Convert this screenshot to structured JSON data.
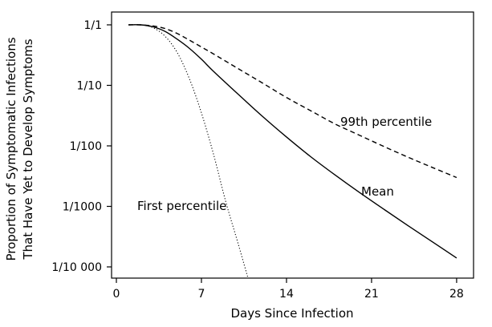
{
  "chart_data": {
    "type": "line",
    "xlabel": "Days Since Infection",
    "ylabel_lines": [
      "Proportion of Symptomatic Infections",
      "That Have Yet to Develop Symptoms"
    ],
    "y_scale": "log",
    "xlim": [
      -0.2,
      28.4
    ],
    "ylim": [
      6e-05,
      1.1
    ],
    "grid": false,
    "x_ticks": [
      {
        "value": 0,
        "label": "0"
      },
      {
        "value": 7,
        "label": "7"
      },
      {
        "value": 14,
        "label": "14"
      },
      {
        "value": 21,
        "label": "21"
      },
      {
        "value": 28,
        "label": "28"
      }
    ],
    "y_ticks": [
      {
        "value": 1,
        "label": "1/1"
      },
      {
        "value": 0.1,
        "label": "1/10"
      },
      {
        "value": 0.01,
        "label": "1/100"
      },
      {
        "value": 0.001,
        "label": "1/1000"
      },
      {
        "value": 0.0001,
        "label": "1/10 000"
      }
    ],
    "series": [
      {
        "name": "99th percentile",
        "style": "dashed",
        "color": "#000000",
        "points": [
          [
            1,
            1
          ],
          [
            2,
            1
          ],
          [
            3,
            0.96
          ],
          [
            4,
            0.87
          ],
          [
            5,
            0.72
          ],
          [
            6,
            0.56
          ],
          [
            7,
            0.43
          ],
          [
            8,
            0.33
          ],
          [
            10,
            0.19
          ],
          [
            12,
            0.11
          ],
          [
            14,
            0.063
          ],
          [
            16,
            0.038
          ],
          [
            18,
            0.023
          ],
          [
            20,
            0.015
          ],
          [
            22,
            0.0098
          ],
          [
            24,
            0.0065
          ],
          [
            26,
            0.0044
          ],
          [
            28,
            0.003
          ]
        ]
      },
      {
        "name": "Mean",
        "style": "solid",
        "color": "#000000",
        "points": [
          [
            1,
            1
          ],
          [
            2,
            1
          ],
          [
            3,
            0.93
          ],
          [
            4,
            0.78
          ],
          [
            5,
            0.58
          ],
          [
            6,
            0.41
          ],
          [
            7,
            0.27
          ],
          [
            8,
            0.17
          ],
          [
            10,
            0.072
          ],
          [
            12,
            0.031
          ],
          [
            14,
            0.014
          ],
          [
            16,
            0.0066
          ],
          [
            18,
            0.0033
          ],
          [
            20,
            0.0017
          ],
          [
            22,
            0.0009
          ],
          [
            24,
            0.00048
          ],
          [
            26,
            0.00026
          ],
          [
            28,
            0.00014
          ]
        ]
      },
      {
        "name": "First percentile",
        "style": "dotted",
        "color": "#000000",
        "points": [
          [
            1,
            1
          ],
          [
            2,
            1
          ],
          [
            3,
            0.9
          ],
          [
            4,
            0.65
          ],
          [
            5,
            0.35
          ],
          [
            6,
            0.13
          ],
          [
            7,
            0.035
          ],
          [
            8,
            0.0072
          ],
          [
            9,
            0.0012
          ],
          [
            10,
            0.00025
          ],
          [
            11,
            5e-05
          ],
          [
            11.6,
            2e-05
          ]
        ]
      }
    ]
  }
}
